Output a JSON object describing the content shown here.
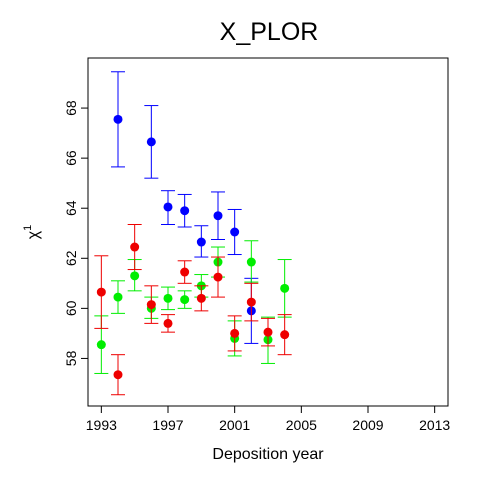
{
  "chart_data": {
    "type": "scatter",
    "title": "X_PLOR",
    "xlabel": "Deposition year",
    "ylabel_base": "χ",
    "ylabel_sup": "1",
    "xlim": [
      1992.2,
      2013.8
    ],
    "ylim": [
      56.1,
      70.0
    ],
    "xticks": [
      1993,
      1997,
      2001,
      2005,
      2009,
      2013
    ],
    "yticks": [
      58,
      60,
      62,
      64,
      66,
      68
    ],
    "grid": false,
    "legend": "none",
    "series": [
      {
        "color": "#0000ff",
        "points": [
          {
            "x": 1994,
            "y": 67.55,
            "lo": 65.65,
            "hi": 69.45
          },
          {
            "x": 1996,
            "y": 66.65,
            "lo": 65.2,
            "hi": 68.1
          },
          {
            "x": 1997,
            "y": 64.05,
            "lo": 63.35,
            "hi": 64.7
          },
          {
            "x": 1998,
            "y": 63.9,
            "lo": 63.25,
            "hi": 64.55
          },
          {
            "x": 1999,
            "y": 62.65,
            "lo": 62.05,
            "hi": 63.3
          },
          {
            "x": 2000,
            "y": 63.7,
            "lo": 62.75,
            "hi": 64.65
          },
          {
            "x": 2001,
            "y": 63.05,
            "lo": 62.15,
            "hi": 63.95
          },
          {
            "x": 2002,
            "y": 59.9,
            "lo": 58.6,
            "hi": 61.2
          }
        ]
      },
      {
        "color": "#00ee00",
        "points": [
          {
            "x": 1993,
            "y": 58.55,
            "lo": 57.4,
            "hi": 59.7
          },
          {
            "x": 1994,
            "y": 60.45,
            "lo": 59.8,
            "hi": 61.1
          },
          {
            "x": 1995,
            "y": 61.3,
            "lo": 60.7,
            "hi": 61.95
          },
          {
            "x": 1996,
            "y": 60.0,
            "lo": 59.6,
            "hi": 60.45
          },
          {
            "x": 1997,
            "y": 60.4,
            "lo": 59.95,
            "hi": 60.85
          },
          {
            "x": 1998,
            "y": 60.35,
            "lo": 60.0,
            "hi": 60.7
          },
          {
            "x": 1999,
            "y": 60.9,
            "lo": 60.45,
            "hi": 61.35
          },
          {
            "x": 2000,
            "y": 61.85,
            "lo": 61.25,
            "hi": 62.45
          },
          {
            "x": 2001,
            "y": 58.8,
            "lo": 58.1,
            "hi": 59.5
          },
          {
            "x": 2002,
            "y": 61.85,
            "lo": 61.05,
            "hi": 62.7
          },
          {
            "x": 2003,
            "y": 58.75,
            "lo": 57.8,
            "hi": 59.65
          },
          {
            "x": 2004,
            "y": 60.8,
            "lo": 59.65,
            "hi": 61.95
          }
        ]
      },
      {
        "color": "#ee0000",
        "points": [
          {
            "x": 1993,
            "y": 60.65,
            "lo": 59.2,
            "hi": 62.1
          },
          {
            "x": 1994,
            "y": 57.35,
            "lo": 56.55,
            "hi": 58.15
          },
          {
            "x": 1995,
            "y": 62.45,
            "lo": 61.55,
            "hi": 63.35
          },
          {
            "x": 1996,
            "y": 60.15,
            "lo": 59.4,
            "hi": 60.9
          },
          {
            "x": 1997,
            "y": 59.4,
            "lo": 59.05,
            "hi": 59.75
          },
          {
            "x": 1998,
            "y": 61.45,
            "lo": 61.0,
            "hi": 61.9
          },
          {
            "x": 1999,
            "y": 60.4,
            "lo": 59.9,
            "hi": 60.9
          },
          {
            "x": 2000,
            "y": 61.25,
            "lo": 60.45,
            "hi": 62.05
          },
          {
            "x": 2001,
            "y": 59.0,
            "lo": 58.3,
            "hi": 59.7
          },
          {
            "x": 2002,
            "y": 60.25,
            "lo": 59.5,
            "hi": 61.0
          },
          {
            "x": 2003,
            "y": 59.05,
            "lo": 58.5,
            "hi": 59.6
          },
          {
            "x": 2004,
            "y": 58.95,
            "lo": 58.15,
            "hi": 59.75
          }
        ]
      }
    ]
  }
}
